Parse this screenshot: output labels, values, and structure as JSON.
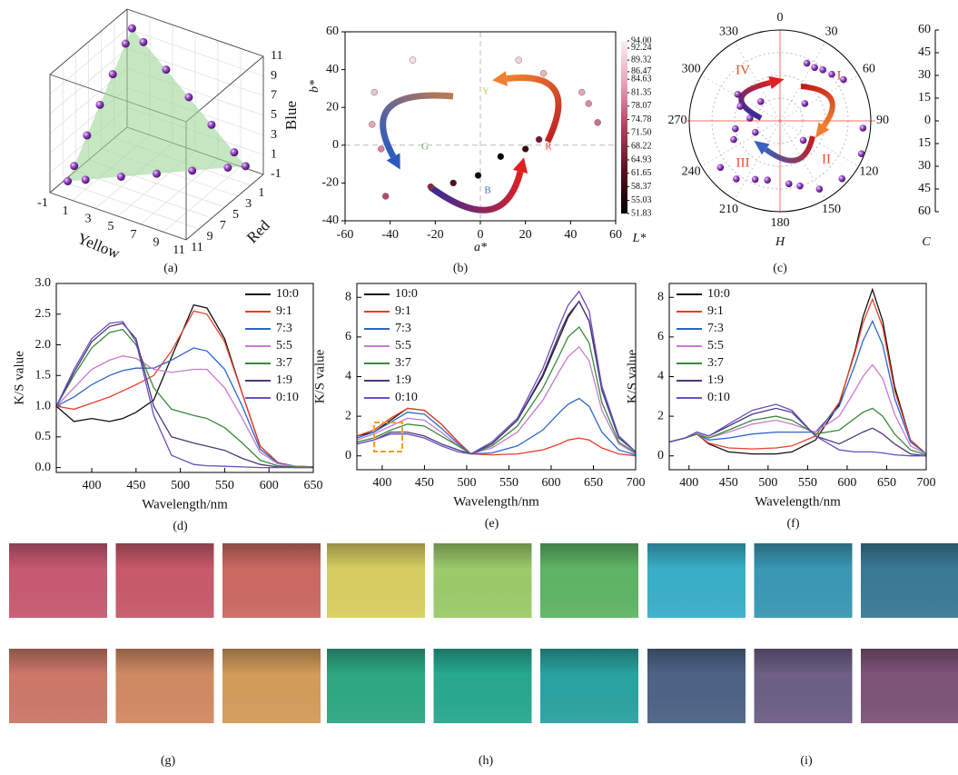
{
  "chart_data": [
    {
      "type": "scatter3d",
      "caption": "(a)",
      "xlabel": "Yellow",
      "ylabel": "Red",
      "zlabel": "Blue",
      "xlim": [
        -1,
        11
      ],
      "ylim": [
        -1,
        11
      ],
      "zlim": [
        -1,
        11
      ],
      "xticks": [
        -1,
        1,
        3,
        5,
        7,
        9,
        11
      ],
      "yticks": [
        1,
        3,
        5,
        7,
        9,
        11
      ],
      "zticks": [
        -1,
        1,
        3,
        5,
        7,
        9,
        11
      ],
      "color": "#8a3fb0",
      "surface_color": "#9fd89a",
      "x": [
        10,
        9,
        7,
        5,
        3,
        1,
        0,
        0,
        0,
        0,
        0,
        0,
        0,
        1,
        3,
        5,
        7,
        9
      ],
      "y": [
        0,
        0,
        0,
        0,
        0,
        0,
        0,
        1,
        3,
        5,
        7,
        9,
        10,
        9,
        7,
        5,
        3,
        1
      ],
      "z": [
        0,
        1,
        3,
        5,
        7,
        9,
        10,
        9,
        7,
        5,
        3,
        1,
        0,
        0,
        0,
        0,
        0,
        0
      ]
    },
    {
      "type": "scatter",
      "caption": "(b)",
      "xlabel": "a*",
      "ylabel": "b*",
      "colorbar_label": "L*",
      "xlim": [
        -60,
        60
      ],
      "xticks": [
        -60,
        -40,
        -20,
        0,
        20,
        40,
        60
      ],
      "ylim": [
        -40,
        60
      ],
      "yticks": [
        -40,
        -20,
        0,
        20,
        40,
        60
      ],
      "clim": [
        51.83,
        94
      ],
      "cticks": [
        {
          "value": 94,
          "label": "94.00"
        },
        92.24,
        89.32,
        86.47,
        84.63,
        81.35,
        78.07,
        74.78,
        {
          "value": 71.5,
          "label": "71.50"
        },
        68.22,
        64.93,
        61.65,
        58.37,
        55.03,
        51.83
      ],
      "colormap": [
        "#000000",
        "#5a0f1e",
        "#b04060",
        "#e8a0b8",
        "#fbeef3"
      ],
      "annotations": [
        {
          "text": "Y",
          "color": "#c9c35a"
        },
        {
          "text": "G",
          "color": "#5bb85b"
        },
        {
          "text": "B",
          "color": "#4a70c0"
        },
        {
          "text": "R",
          "color": "#e05030"
        }
      ],
      "x": [
        -30,
        17,
        28,
        45,
        48,
        52,
        -47,
        -48,
        -44,
        -42,
        -22,
        -12,
        -1,
        9,
        20,
        26
      ],
      "y": [
        45,
        45,
        38,
        28,
        22,
        12,
        28,
        11,
        -2,
        -27,
        -22,
        -20,
        -16,
        -6,
        -2,
        3
      ],
      "c": [
        92,
        90,
        86,
        84,
        81,
        78,
        88,
        84,
        80,
        74,
        68,
        62,
        55,
        52,
        58,
        65
      ]
    },
    {
      "type": "polar",
      "caption": "(c)",
      "theta_label": "H",
      "r_label": "C",
      "thetaticks": [
        0,
        30,
        60,
        90,
        120,
        150,
        180,
        210,
        240,
        270,
        300,
        330
      ],
      "rlim": [
        0,
        60
      ],
      "rticks_upper": [
        60,
        45,
        30,
        15,
        0
      ],
      "rticks_lower": [
        15,
        30,
        45,
        60
      ],
      "quadrant_labels": [
        "I",
        "II",
        "III",
        "IV"
      ],
      "color": "#8a3fb0",
      "theta": [
        25,
        33,
        40,
        48,
        57,
        95,
        112,
        133,
        150,
        163,
        172,
        192,
        203,
        217,
        232,
        248,
        260,
        275,
        290,
        302,
        55,
        315,
        245,
        130
      ],
      "r": [
        42,
        42,
        44,
        46,
        50,
        55,
        58,
        56,
        52,
        45,
        42,
        40,
        42,
        48,
        50,
        33,
        30,
        20,
        28,
        33,
        20,
        18,
        18,
        20
      ]
    },
    {
      "type": "line",
      "caption": "(d)",
      "xlabel": "Wavelength/nm",
      "ylabel": "K/S value",
      "legend": "upper right",
      "xlim": [
        360,
        650
      ],
      "xticks": [
        400,
        450,
        500,
        550,
        600,
        650
      ],
      "ylim": [
        -0.08,
        3.0
      ],
      "yticks": [
        {
          "value": 0,
          "label": "0.0"
        },
        0.5,
        {
          "value": 1,
          "label": "1.0"
        },
        1.5,
        {
          "value": 2,
          "label": "2.0"
        },
        2.5,
        {
          "value": 3,
          "label": "3.0"
        }
      ],
      "x": [
        360,
        380,
        400,
        420,
        435,
        450,
        470,
        490,
        515,
        530,
        550,
        570,
        590,
        610,
        630,
        650
      ],
      "series": [
        {
          "name": "10:0",
          "color": "#111111",
          "values": [
            1.0,
            0.75,
            0.8,
            0.75,
            0.8,
            0.9,
            1.1,
            1.8,
            2.65,
            2.6,
            2.1,
            1.2,
            0.35,
            0.08,
            0.02,
            0.01
          ]
        },
        {
          "name": "9:1",
          "color": "#e8402a",
          "values": [
            1.0,
            0.95,
            1.05,
            1.15,
            1.25,
            1.35,
            1.5,
            1.9,
            2.55,
            2.5,
            2.05,
            1.2,
            0.35,
            0.08,
            0.02,
            0.01
          ]
        },
        {
          "name": "7:3",
          "color": "#2d66c8",
          "values": [
            1.0,
            1.15,
            1.35,
            1.5,
            1.58,
            1.62,
            1.62,
            1.75,
            1.95,
            1.9,
            1.6,
            1.0,
            0.3,
            0.07,
            0.02,
            0.01
          ]
        },
        {
          "name": "5:5",
          "color": "#c77ad1",
          "values": [
            1.0,
            1.3,
            1.6,
            1.75,
            1.82,
            1.78,
            1.6,
            1.55,
            1.6,
            1.6,
            1.3,
            0.8,
            0.25,
            0.06,
            0.02,
            0.01
          ]
        },
        {
          "name": "3:7",
          "color": "#3a8a3a",
          "values": [
            1.0,
            1.5,
            1.95,
            2.2,
            2.25,
            2.0,
            1.3,
            0.95,
            0.85,
            0.8,
            0.65,
            0.4,
            0.12,
            0.03,
            0.01,
            0.01
          ]
        },
        {
          "name": "1:9",
          "color": "#4d3a7a",
          "values": [
            1.0,
            1.55,
            2.05,
            2.3,
            2.35,
            2.1,
            1.0,
            0.5,
            0.4,
            0.35,
            0.28,
            0.15,
            0.05,
            0.01,
            0.0,
            0.0
          ]
        },
        {
          "name": "0:10",
          "color": "#6a4fc0",
          "values": [
            1.0,
            1.6,
            2.1,
            2.35,
            2.38,
            2.05,
            0.85,
            0.2,
            0.05,
            0.03,
            0.02,
            0.01,
            0.0,
            0.0,
            0.0,
            0.0
          ]
        }
      ]
    },
    {
      "type": "line",
      "caption": "(e)",
      "xlabel": "Wavelength/nm",
      "ylabel": "K/S value",
      "legend": "upper left",
      "xlim": [
        370,
        700
      ],
      "xticks": [
        400,
        450,
        500,
        550,
        600,
        650,
        700
      ],
      "ylim": [
        -0.7,
        8.7
      ],
      "yticks": [
        0,
        2,
        4,
        6,
        8
      ],
      "x": [
        370,
        390,
        410,
        430,
        450,
        470,
        490,
        505,
        530,
        560,
        590,
        610,
        620,
        633,
        645,
        660,
        680,
        700
      ],
      "series": [
        {
          "name": "10:0",
          "color": "#111111",
          "values": [
            1.0,
            1.2,
            1.8,
            2.4,
            2.3,
            1.6,
            0.7,
            0.1,
            0.6,
            1.8,
            4.0,
            6.0,
            7.0,
            7.8,
            6.8,
            3.5,
            1.0,
            0.2
          ]
        },
        {
          "name": "9:1",
          "color": "#e8402a",
          "values": [
            1.0,
            1.3,
            1.9,
            2.4,
            2.3,
            1.6,
            0.7,
            0.1,
            0.05,
            0.1,
            0.3,
            0.6,
            0.8,
            0.9,
            0.8,
            0.4,
            0.1,
            0.0
          ]
        },
        {
          "name": "7:3",
          "color": "#2d66c8",
          "values": [
            0.9,
            1.2,
            1.7,
            2.2,
            2.1,
            1.4,
            0.6,
            0.1,
            0.15,
            0.5,
            1.3,
            2.2,
            2.6,
            2.9,
            2.5,
            1.2,
            0.3,
            0.05
          ]
        },
        {
          "name": "5:5",
          "color": "#c77ad1",
          "values": [
            0.8,
            1.1,
            1.5,
            1.9,
            1.8,
            1.2,
            0.5,
            0.1,
            0.4,
            1.2,
            2.8,
            4.3,
            5.0,
            5.5,
            4.8,
            2.3,
            0.6,
            0.1
          ]
        },
        {
          "name": "3:7",
          "color": "#3a8a3a",
          "values": [
            0.7,
            0.9,
            1.3,
            1.6,
            1.5,
            1.0,
            0.5,
            0.1,
            0.5,
            1.5,
            3.4,
            5.1,
            6.0,
            6.5,
            5.7,
            2.7,
            0.7,
            0.15
          ]
        },
        {
          "name": "1:9",
          "color": "#4d3a7a",
          "values": [
            0.6,
            0.8,
            1.2,
            1.2,
            1.0,
            0.6,
            0.3,
            0.1,
            0.6,
            1.8,
            4.1,
            6.2,
            7.1,
            7.8,
            6.8,
            3.3,
            0.9,
            0.2
          ]
        },
        {
          "name": "0:10",
          "color": "#6a4fc0",
          "values": [
            0.6,
            0.8,
            1.1,
            1.1,
            0.9,
            0.5,
            0.2,
            0.1,
            0.7,
            1.9,
            4.4,
            6.6,
            7.6,
            8.3,
            7.3,
            3.5,
            1.0,
            0.2
          ]
        }
      ]
    },
    {
      "type": "line",
      "caption": "(f)",
      "xlabel": "Wavelength/nm",
      "ylabel": "K/S value",
      "legend": "upper left",
      "xlim": [
        375,
        700
      ],
      "xticks": [
        400,
        450,
        500,
        550,
        600,
        650,
        700
      ],
      "ylim": [
        -0.7,
        8.7
      ],
      "yticks": [
        0,
        2,
        4,
        6,
        8
      ],
      "x": [
        375,
        395,
        410,
        425,
        450,
        480,
        510,
        530,
        560,
        590,
        610,
        620,
        632,
        645,
        660,
        680,
        700
      ],
      "series": [
        {
          "name": "10:0",
          "color": "#111111",
          "values": [
            0.7,
            0.9,
            1.1,
            0.6,
            0.2,
            0.1,
            0.1,
            0.2,
            0.8,
            2.6,
            5.3,
            7.0,
            8.4,
            6.8,
            3.5,
            0.8,
            0.1
          ]
        },
        {
          "name": "9:1",
          "color": "#e8402a",
          "values": [
            0.7,
            0.9,
            1.1,
            0.65,
            0.4,
            0.35,
            0.4,
            0.5,
            1.0,
            2.7,
            5.2,
            6.7,
            7.9,
            6.5,
            3.3,
            0.8,
            0.1
          ]
        },
        {
          "name": "7:3",
          "color": "#2d66c8",
          "values": [
            0.7,
            0.9,
            1.1,
            0.8,
            0.9,
            1.1,
            1.2,
            1.2,
            1.2,
            2.5,
            4.6,
            5.8,
            6.8,
            5.6,
            2.9,
            0.7,
            0.1
          ]
        },
        {
          "name": "5:5",
          "color": "#c77ad1",
          "values": [
            0.7,
            0.9,
            1.1,
            0.9,
            1.2,
            1.6,
            1.8,
            1.6,
            1.2,
            2.0,
            3.3,
            4.0,
            4.6,
            3.9,
            2.1,
            0.5,
            0.1
          ]
        },
        {
          "name": "3:7",
          "color": "#3a8a3a",
          "values": [
            0.7,
            0.9,
            1.1,
            0.9,
            1.3,
            1.8,
            2.0,
            1.8,
            1.1,
            1.3,
            1.9,
            2.2,
            2.4,
            2.0,
            1.1,
            0.3,
            0.05
          ]
        },
        {
          "name": "1:9",
          "color": "#4d3a7a",
          "values": [
            0.7,
            0.9,
            1.2,
            1.0,
            1.5,
            2.1,
            2.4,
            2.2,
            1.0,
            0.6,
            1.0,
            1.2,
            1.4,
            1.1,
            0.6,
            0.1,
            0.0
          ]
        },
        {
          "name": "0:10",
          "color": "#6a4fc0",
          "values": [
            0.7,
            0.9,
            1.2,
            1.0,
            1.6,
            2.3,
            2.6,
            2.3,
            1.0,
            0.3,
            0.2,
            0.2,
            0.2,
            0.15,
            0.05,
            0.0,
            0.0
          ]
        }
      ]
    }
  ],
  "swatches": [
    {
      "caption": "(g)",
      "colors": [
        [
          "#c85a72",
          "#c85a6a",
          "#cc6a62"
        ],
        [
          "#cc7868",
          "#d08a62",
          "#d39c5a"
        ]
      ]
    },
    {
      "caption": "(h)",
      "colors": [
        [
          "#d8cf62",
          "#9ccb6a",
          "#5fb565"
        ],
        [
          "#2ea883",
          "#27a98f",
          "#2aa3a0"
        ]
      ]
    },
    {
      "caption": "(i)",
      "colors": [
        [
          "#3aafc8",
          "#3a98b5",
          "#3b7a96"
        ],
        [
          "#4d6486",
          "#6d5f85",
          "#7d5478"
        ]
      ]
    }
  ]
}
